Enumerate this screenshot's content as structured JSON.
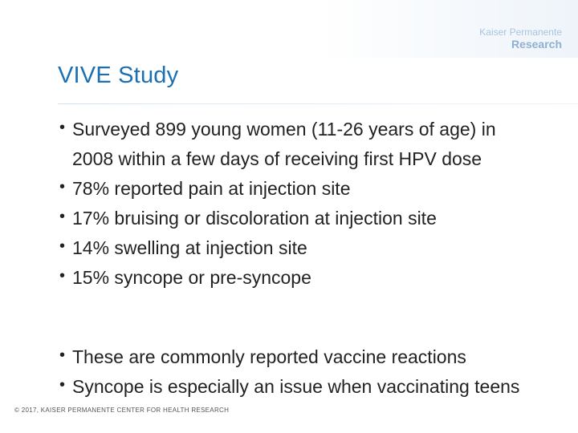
{
  "brand": {
    "name": "Kaiser Permanente",
    "sub": "Research"
  },
  "slide": {
    "title": "VIVE Study",
    "bullets_a": [
      "Surveyed 899 young women (11-26 years of age) in 2008 within a few days of receiving first HPV dose",
      "78% reported pain at injection site",
      "17% bruising or discoloration at injection site",
      "14% swelling at injection site",
      "15% syncope or pre-syncope"
    ],
    "bullets_b": [
      "These are commonly reported vaccine reactions",
      "Syncope is especially an issue when vaccinating teens"
    ]
  },
  "footer": {
    "copyright": "© 2017, KAISER PERMANENTE CENTER FOR HEALTH RESEARCH"
  }
}
